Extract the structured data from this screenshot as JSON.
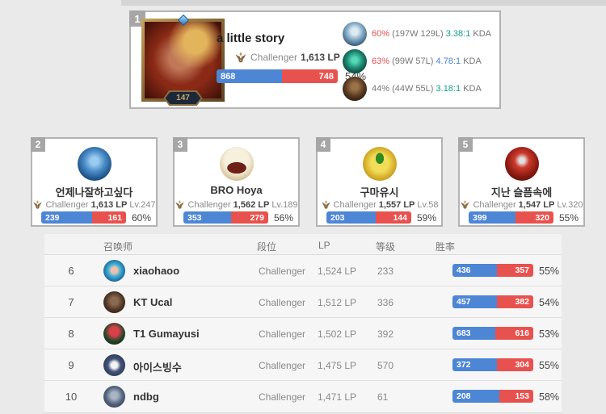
{
  "top_card": {
    "rank": "1",
    "level": "147",
    "name": "a little story",
    "tier": "Challenger",
    "lp": "1,613 LP",
    "wins": "868",
    "losses": "748",
    "rate": "54%",
    "win_pct": 53.7,
    "champions": [
      {
        "rate": "60%",
        "rate_color": "#e2504e",
        "record": "(197W 129L)",
        "kda": "3.38:1",
        "kda_color": "#14a08a",
        "label": "KDA"
      },
      {
        "rate": "63%",
        "rate_color": "#e2504e",
        "record": "(99W 57L)",
        "kda": "4.78:1",
        "kda_color": "#4a85d6",
        "label": "KDA"
      },
      {
        "rate": "44%",
        "rate_color": "#777777",
        "record": "(44W 55L)",
        "kda": "3.18:1",
        "kda_color": "#14a08a",
        "label": "KDA"
      }
    ]
  },
  "cards": [
    {
      "rank": "2",
      "name": "언제나잘하고싶다",
      "tier": "Challenger",
      "lp": "1,613 LP",
      "level": "Lv.247",
      "wins": "239",
      "losses": "161",
      "rate": "60%",
      "win_pct": 59.8
    },
    {
      "rank": "3",
      "name": "BRO Hoya",
      "tier": "Challenger",
      "lp": "1,562 LP",
      "level": "Lv.189",
      "wins": "353",
      "losses": "279",
      "rate": "56%",
      "win_pct": 55.9
    },
    {
      "rank": "4",
      "name": "구마유시",
      "tier": "Challenger",
      "lp": "1,557 LP",
      "level": "Lv.58",
      "wins": "203",
      "losses": "144",
      "rate": "59%",
      "win_pct": 58.5
    },
    {
      "rank": "5",
      "name": "지난 슬픔속에",
      "tier": "Challenger",
      "lp": "1,547 LP",
      "level": "Lv.320",
      "wins": "399",
      "losses": "320",
      "rate": "55%",
      "win_pct": 55.5
    }
  ],
  "table": {
    "headers": {
      "summoner": "召唤师",
      "tier": "段位",
      "lp": "LP",
      "level": "等级",
      "winrate": "胜率"
    },
    "rows": [
      {
        "rank": "6",
        "name": "xiaohaoo",
        "tier": "Challenger",
        "lp": "1,524 LP",
        "level": "233",
        "wins": "436",
        "losses": "357",
        "rate": "55%",
        "win_pct": 55.0
      },
      {
        "rank": "7",
        "name": "KT Ucal",
        "tier": "Challenger",
        "lp": "1,512 LP",
        "level": "336",
        "wins": "457",
        "losses": "382",
        "rate": "54%",
        "win_pct": 54.5
      },
      {
        "rank": "8",
        "name": "T1 Gumayusi",
        "tier": "Challenger",
        "lp": "1,502 LP",
        "level": "392",
        "wins": "683",
        "losses": "616",
        "rate": "53%",
        "win_pct": 52.6
      },
      {
        "rank": "9",
        "name": "아이스빙수",
        "tier": "Challenger",
        "lp": "1,475 LP",
        "level": "570",
        "wins": "372",
        "losses": "304",
        "rate": "55%",
        "win_pct": 55.0
      },
      {
        "rank": "10",
        "name": "ndbg",
        "tier": "Challenger",
        "lp": "1,471 LP",
        "level": "61",
        "wins": "208",
        "losses": "153",
        "rate": "58%",
        "win_pct": 57.6
      }
    ]
  },
  "colors": {
    "win_blue": "#4d86d4",
    "loss_red": "#e8524e",
    "tier_icon_bronze": "#8a6b40"
  }
}
